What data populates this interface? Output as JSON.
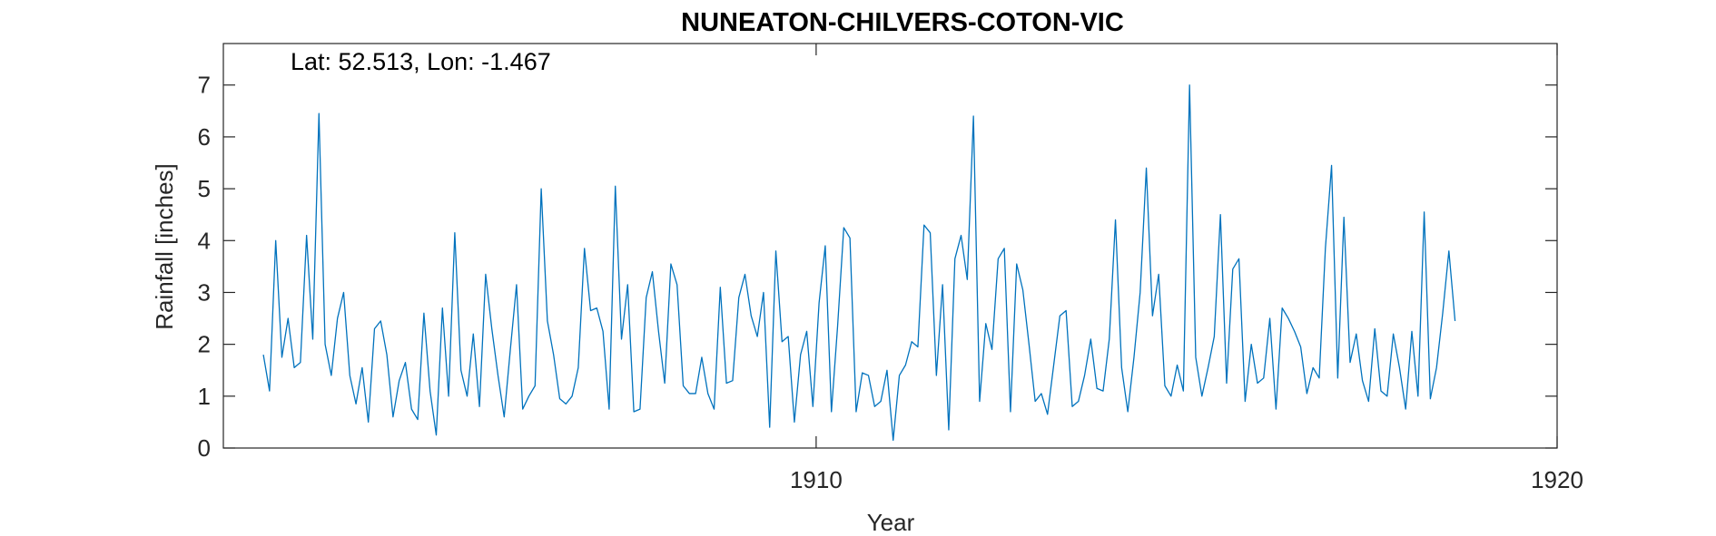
{
  "chart_data": {
    "type": "line",
    "title": "NUNEATON-CHILVERS-COTON-VIC",
    "annotation": "Lat: 52.513, Lon: -1.467",
    "xlabel": "Year",
    "ylabel": "Rainfall [inches]",
    "xlim": [
      1902,
      1920
    ],
    "ylim": [
      0,
      7.8
    ],
    "x_ticks": [
      1910,
      1920
    ],
    "x_tick_labels": [
      "1910",
      "1920"
    ],
    "y_ticks": [
      0,
      1,
      2,
      3,
      4,
      5,
      6,
      7
    ],
    "y_tick_labels": [
      "0",
      "1",
      "2",
      "3",
      "4",
      "5",
      "6",
      "7"
    ],
    "grid": false,
    "series_color": "#0072BD",
    "x_start": 1902.54,
    "x_step": 0.08333,
    "series": [
      {
        "name": "",
        "values": [
          1.8,
          1.1,
          4.0,
          1.75,
          2.5,
          1.55,
          1.65,
          4.1,
          2.1,
          6.45,
          2.0,
          1.4,
          2.5,
          3.0,
          1.4,
          0.85,
          1.55,
          0.5,
          2.3,
          2.45,
          1.8,
          0.6,
          1.3,
          1.65,
          0.75,
          0.55,
          2.6,
          1.1,
          0.25,
          2.7,
          1.0,
          4.15,
          1.5,
          1.0,
          2.2,
          0.8,
          3.35,
          2.3,
          1.4,
          0.6,
          1.9,
          3.15,
          0.75,
          1.0,
          1.2,
          5.0,
          2.45,
          1.8,
          0.95,
          0.85,
          1.0,
          1.55,
          3.85,
          2.65,
          2.7,
          2.25,
          0.75,
          5.05,
          2.1,
          3.15,
          0.7,
          0.75,
          2.9,
          3.4,
          2.25,
          1.25,
          3.55,
          3.15,
          1.2,
          1.05,
          1.05,
          1.75,
          1.05,
          0.75,
          3.1,
          1.25,
          1.3,
          2.9,
          3.35,
          2.55,
          2.15,
          3.0,
          0.4,
          3.8,
          2.05,
          2.15,
          0.5,
          1.8,
          2.25,
          0.8,
          2.8,
          3.9,
          0.7,
          2.35,
          4.25,
          4.05,
          0.7,
          1.45,
          1.4,
          0.8,
          0.9,
          1.5,
          0.15,
          1.4,
          1.6,
          2.05,
          1.95,
          4.3,
          4.15,
          1.4,
          3.15,
          0.35,
          3.65,
          4.1,
          3.25,
          6.4,
          0.9,
          2.4,
          1.9,
          3.65,
          3.85,
          0.7,
          3.55,
          3.05,
          2.0,
          0.9,
          1.05,
          0.65,
          1.6,
          2.55,
          2.65,
          0.8,
          0.9,
          1.4,
          2.1,
          1.15,
          1.1,
          2.1,
          4.4,
          1.55,
          0.7,
          1.75,
          3.0,
          5.4,
          2.55,
          3.35,
          1.2,
          1.0,
          1.6,
          1.1,
          7.0,
          1.75,
          1.0,
          1.55,
          2.15,
          4.5,
          1.25,
          3.45,
          3.65,
          0.9,
          2.0,
          1.25,
          1.35,
          2.5,
          0.75,
          2.7,
          2.5,
          2.25,
          1.95,
          1.05,
          1.55,
          1.35,
          3.85,
          5.45,
          1.35,
          4.45,
          1.65,
          2.2,
          1.3,
          0.9,
          2.3,
          1.1,
          1.0,
          2.2,
          1.55,
          0.75,
          2.25,
          1.0,
          4.55,
          0.95,
          1.55,
          2.6,
          3.8,
          2.45
        ]
      }
    ]
  }
}
